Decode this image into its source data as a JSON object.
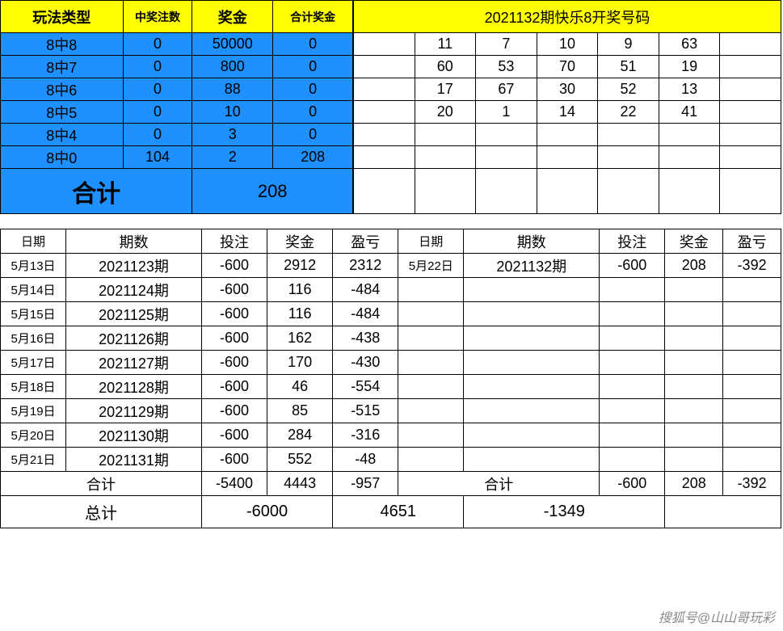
{
  "prize_table": {
    "headers": [
      "玩法类型",
      "中奖注数",
      "奖金",
      "合计奖金"
    ],
    "rows": [
      {
        "type": "8中8",
        "count": "0",
        "prize": "50000",
        "total": "0"
      },
      {
        "type": "8中7",
        "count": "0",
        "prize": "800",
        "total": "0"
      },
      {
        "type": "8中6",
        "count": "0",
        "prize": "88",
        "total": "0"
      },
      {
        "type": "8中5",
        "count": "0",
        "prize": "10",
        "total": "0"
      },
      {
        "type": "8中4",
        "count": "0",
        "prize": "3",
        "total": "0"
      },
      {
        "type": "8中0",
        "count": "104",
        "prize": "2",
        "total": "208"
      }
    ],
    "sum_label": "合计",
    "sum_value": "208"
  },
  "numbers_table": {
    "title": "2021132期快乐8开奖号码",
    "rows": [
      [
        "11",
        "7",
        "10",
        "9",
        "63",
        ""
      ],
      [
        "60",
        "53",
        "70",
        "51",
        "19",
        ""
      ],
      [
        "17",
        "67",
        "30",
        "52",
        "13",
        ""
      ],
      [
        "20",
        "1",
        "14",
        "22",
        "41",
        ""
      ]
    ]
  },
  "daily_table": {
    "headers": [
      "日期",
      "期数",
      "投注",
      "奖金",
      "盈亏",
      "日期",
      "期数",
      "投注",
      "奖金",
      "盈亏"
    ],
    "rows": [
      {
        "d1": "5月13日",
        "p1": "2021123期",
        "b1": "-600",
        "z1": "2912",
        "y1": "2312",
        "d2": "5月22日",
        "p2": "2021132期",
        "b2": "-600",
        "z2": "208",
        "y2": "-392"
      },
      {
        "d1": "5月14日",
        "p1": "2021124期",
        "b1": "-600",
        "z1": "116",
        "y1": "-484",
        "d2": "",
        "p2": "",
        "b2": "",
        "z2": "",
        "y2": ""
      },
      {
        "d1": "5月15日",
        "p1": "2021125期",
        "b1": "-600",
        "z1": "116",
        "y1": "-484",
        "d2": "",
        "p2": "",
        "b2": "",
        "z2": "",
        "y2": ""
      },
      {
        "d1": "5月16日",
        "p1": "2021126期",
        "b1": "-600",
        "z1": "162",
        "y1": "-438",
        "d2": "",
        "p2": "",
        "b2": "",
        "z2": "",
        "y2": ""
      },
      {
        "d1": "5月17日",
        "p1": "2021127期",
        "b1": "-600",
        "z1": "170",
        "y1": "-430",
        "d2": "",
        "p2": "",
        "b2": "",
        "z2": "",
        "y2": ""
      },
      {
        "d1": "5月18日",
        "p1": "2021128期",
        "b1": "-600",
        "z1": "46",
        "y1": "-554",
        "d2": "",
        "p2": "",
        "b2": "",
        "z2": "",
        "y2": ""
      },
      {
        "d1": "5月19日",
        "p1": "2021129期",
        "b1": "-600",
        "z1": "85",
        "y1": "-515",
        "d2": "",
        "p2": "",
        "b2": "",
        "z2": "",
        "y2": ""
      },
      {
        "d1": "5月20日",
        "p1": "2021130期",
        "b1": "-600",
        "z1": "284",
        "y1": "-316",
        "d2": "",
        "p2": "",
        "b2": "",
        "z2": "",
        "y2": ""
      },
      {
        "d1": "5月21日",
        "p1": "2021131期",
        "b1": "-600",
        "z1": "552",
        "y1": "-48",
        "d2": "",
        "p2": "",
        "b2": "",
        "z2": "",
        "y2": ""
      }
    ],
    "subtotal_label": "合计",
    "subtotal_left": {
      "bet": "-5400",
      "prize": "4443",
      "pl": "-957"
    },
    "subtotal_right": {
      "bet": "-600",
      "prize": "208",
      "pl": "-392"
    },
    "grand_label": "总计",
    "grand": {
      "bet": "-6000",
      "prize": "4651",
      "pl": "-1349"
    }
  },
  "watermark": "搜狐号@山山哥玩彩",
  "colors": {
    "yellow": "#ffff00",
    "blue": "#1e90ff",
    "border": "#000000"
  }
}
